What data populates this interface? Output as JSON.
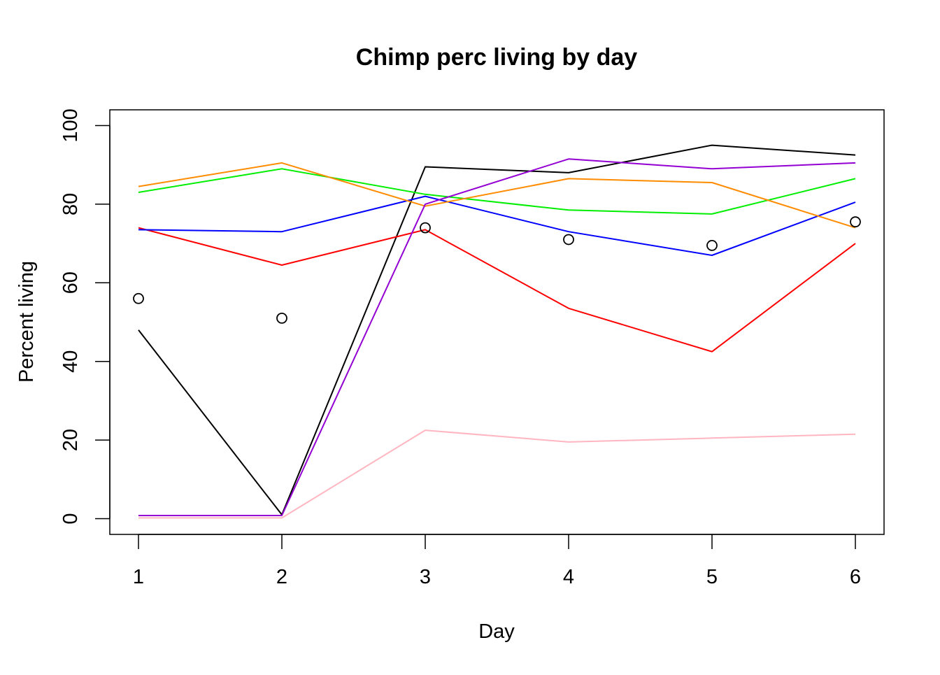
{
  "chart_data": {
    "type": "line",
    "title": "Chimp perc living by day",
    "xlabel": "Day",
    "ylabel": "Percent living",
    "x": [
      1,
      2,
      3,
      4,
      5,
      6
    ],
    "xlim": [
      0.8,
      6.2
    ],
    "ylim": [
      -4,
      104
    ],
    "x_ticks": [
      "1",
      "2",
      "3",
      "4",
      "5",
      "6"
    ],
    "y_ticks": [
      "0",
      "20",
      "40",
      "60",
      "80",
      "100"
    ],
    "grid": false,
    "legend": "none",
    "series": [
      {
        "color": "#000000",
        "values": [
          48,
          1,
          89.5,
          88,
          95,
          92.5
        ]
      },
      {
        "color": "#ff0000",
        "values": [
          74,
          64.5,
          73.5,
          53.5,
          42.5,
          70
        ]
      },
      {
        "color": "#00ee00",
        "values": [
          83,
          89,
          82.5,
          78.5,
          77.5,
          86.5
        ]
      },
      {
        "color": "#0000ff",
        "values": [
          73.5,
          73,
          82,
          73,
          67,
          80.5
        ]
      },
      {
        "color": "#ff8c00",
        "values": [
          84.5,
          90.5,
          79.5,
          86.5,
          85.5,
          74
        ]
      },
      {
        "color": "#9400d3",
        "values": [
          0.8,
          0.8,
          80,
          91.5,
          89,
          90.5
        ]
      },
      {
        "color": "#ffb6c1",
        "values": [
          0.2,
          0.2,
          22.5,
          19.5,
          20.5,
          21.5
        ]
      }
    ],
    "points": {
      "marker": "open-circle",
      "color": "#000000",
      "values": [
        56,
        51,
        74,
        71,
        69.5,
        75.5
      ]
    }
  }
}
